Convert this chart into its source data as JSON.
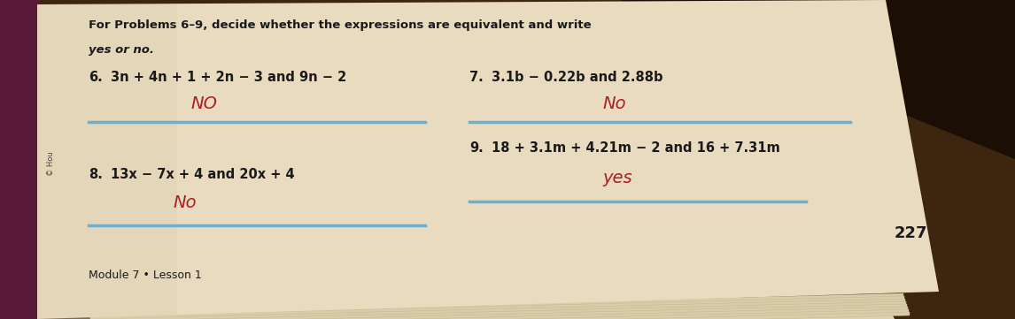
{
  "bg_color_top": "#2a1a0a",
  "bg_color_main": "#3d2510",
  "paper_color": "#e8dbbf",
  "paper_shadow": "#d4c9a8",
  "title_line1": "For Problems 6–9, decide whether the expressions are equivalent and write",
  "title_line2": "yes or no.",
  "problem6_label": "6.",
  "problem6_text": "3n + 4n + 1 + 2n − 3 and 9n − 2",
  "problem6_answer": "NO",
  "problem7_label": "7.",
  "problem7_text": "3.1b − 0.22b and 2.88b",
  "problem7_answer": "No",
  "problem8_label": "8.",
  "problem8_text": "13x − 7x + 4 and 20x + 4",
  "problem8_answer": "No",
  "problem9_label": "9.",
  "problem9_text": "18 + 3.1m + 4.21m − 2 and 16 + 7.31m",
  "problem9_answer": "yes",
  "page_number": "227",
  "footer": "Module 7 • Lesson 1",
  "copyright": "© Hou",
  "line_color": "#6aafd4",
  "answer_color": "#aa2020",
  "text_color": "#1a1a1a",
  "pages_color": "#ddd0b0",
  "spine_color": "#6b3a1f"
}
